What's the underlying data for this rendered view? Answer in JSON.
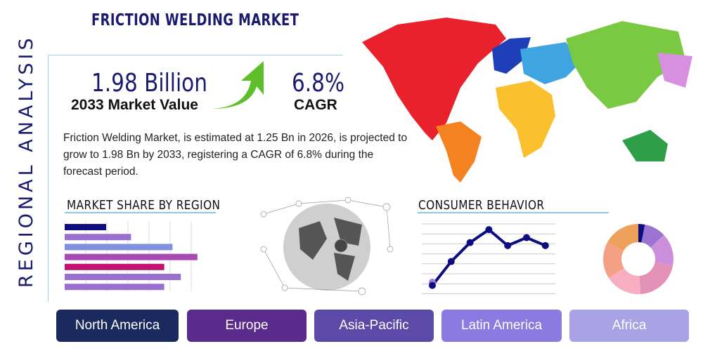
{
  "header": {
    "title": "FRICTION WELDING MARKET",
    "side_label": "REGIONAL ANALYSIS"
  },
  "stats": {
    "market_value": "1.98 Billion",
    "market_value_label": "2033 Market Value",
    "cagr": "6.8%",
    "cagr_label": "CAGR",
    "arrow_icon": "green-up-arrow",
    "arrow_color": "#5fbf2a"
  },
  "description": "Friction Welding Market, is estimated at 1.25 Bn in 2026, is projected to grow to 1.98 Bn by 2033, registering a CAGR of 6.8% during the forecast period.",
  "sections": {
    "market_share": "MARKET SHARE BY REGION",
    "consumer": "CONSUMER BEHAVIOR"
  },
  "chart_data": [
    {
      "type": "bar",
      "orientation": "horizontal",
      "values": [
        1,
        1.6,
        2.6,
        3.2,
        2.4,
        2.8,
        2.4
      ],
      "colors": [
        "#0d0d80",
        "#9a6fd0",
        "#7f90dc",
        "#a84bb0",
        "#c0136e",
        "#9a6fd0",
        "#9a6fd0"
      ],
      "grid": true
    },
    {
      "type": "line",
      "values": [
        0.8,
        3.2,
        5.1,
        6.4,
        4.8,
        5.6,
        4.8
      ],
      "ylim": [
        0,
        7
      ],
      "color": "#0d0d80",
      "grid": true
    },
    {
      "type": "pie",
      "donut": true,
      "values": [
        3,
        10,
        15,
        21,
        17,
        17,
        17
      ],
      "colors": [
        "#0d0d80",
        "#9b74d2",
        "#cc8fdc",
        "#e491b8",
        "#f6aec0",
        "#f4a084",
        "#eda15a"
      ]
    }
  ],
  "map_colors": {
    "north_america": "#e8212d",
    "south_america": "#f58220",
    "europe": "#1e3fb8",
    "africa": "#fbc02d",
    "asia": "#7ac943",
    "middle_east": "#3ea5e0",
    "oceania": "#2e9e48",
    "asia_east": "#d98fe0"
  },
  "regions": [
    {
      "label": "North America",
      "color": "#1b2a5e"
    },
    {
      "label": "Europe",
      "color": "#5a2a8c"
    },
    {
      "label": "Asia-Pacific",
      "color": "#5b4aa8"
    },
    {
      "label": "Latin America",
      "color": "#8b7ae0"
    },
    {
      "label": "Africa",
      "color": "#a9a3e6"
    }
  ]
}
